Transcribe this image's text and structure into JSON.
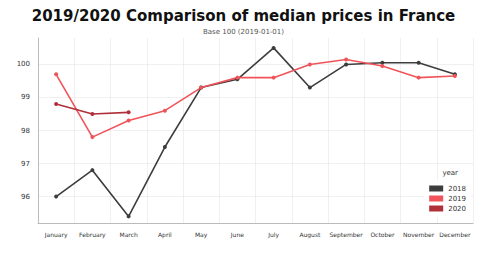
{
  "chart_data": {
    "type": "line",
    "title": "2019/2020 Comparison of median prices in France",
    "subtitle": "Base 100 (2019-01-01)",
    "legend_title": "year",
    "categories": [
      "January",
      "February",
      "March",
      "April",
      "May",
      "June",
      "July",
      "August",
      "September",
      "October",
      "November",
      "December"
    ],
    "series": [
      {
        "name": "2018",
        "color": "#3d3d3d",
        "values": [
          96.0,
          96.8,
          95.4,
          97.5,
          99.3,
          99.55,
          100.5,
          99.3,
          100.0,
          100.05,
          100.05,
          99.7
        ]
      },
      {
        "name": "2019",
        "color": "#f0545a",
        "values": [
          99.7,
          97.8,
          98.3,
          98.6,
          99.3,
          99.6,
          99.6,
          100.0,
          100.15,
          99.95,
          99.6,
          99.65
        ]
      },
      {
        "name": "2020",
        "color": "#b0303a",
        "values": [
          98.8,
          98.5,
          98.55,
          null,
          null,
          null,
          null,
          null,
          null,
          null,
          null,
          null
        ]
      }
    ],
    "ylim": [
      95.2,
      100.8
    ],
    "yticks": [
      96,
      97,
      98,
      99,
      100
    ],
    "grid": true,
    "legend": "bottom-right",
    "marker": "circle"
  }
}
